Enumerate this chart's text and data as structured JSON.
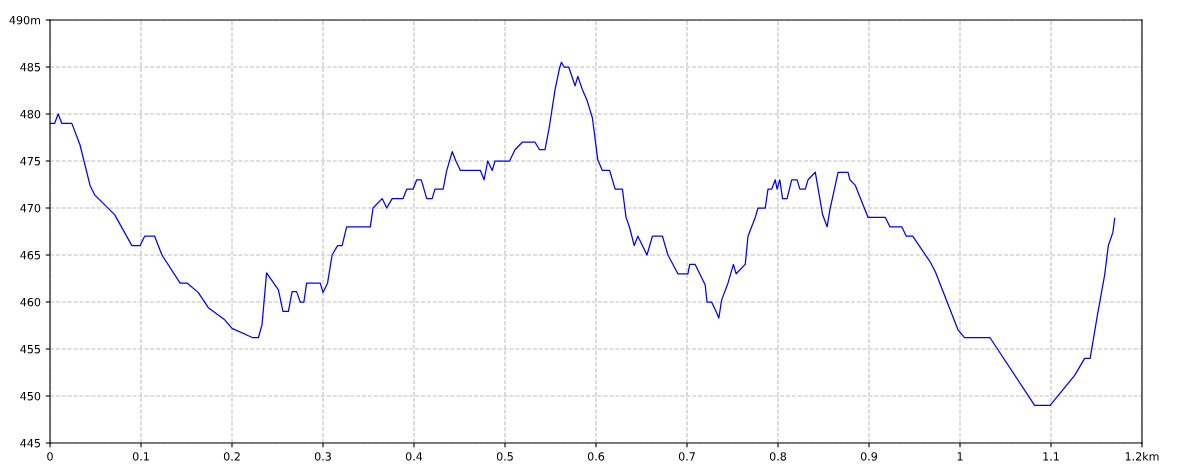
{
  "chart_data": {
    "type": "line",
    "xlim": [
      0,
      1.2
    ],
    "ylim": [
      445,
      490
    ],
    "xticks": [
      0,
      0.1,
      0.2,
      0.3,
      0.4,
      0.5,
      0.6,
      0.7,
      0.8,
      0.9,
      1,
      1.1,
      {
        "value": 1.2,
        "label": "1.2km"
      }
    ],
    "yticks": [
      445,
      450,
      455,
      460,
      465,
      470,
      475,
      480,
      485,
      {
        "value": 490,
        "label": "490m"
      }
    ],
    "grid": true,
    "line_style": "solid",
    "marker": "none",
    "series": [
      {
        "color": "#0000ff",
        "x": [
          0,
          0.005,
          0.009,
          0.013,
          0.024,
          0.033,
          0.044,
          0.049,
          0.071,
          0.09,
          0.099,
          0.104,
          0.115,
          0.123,
          0.143,
          0.151,
          0.163,
          0.174,
          0.192,
          0.2,
          0.223,
          0.229,
          0.233,
          0.238,
          0.251,
          0.256,
          0.262,
          0.266,
          0.271,
          0.275,
          0.279,
          0.282,
          0.297,
          0.3,
          0.305,
          0.31,
          0.316,
          0.321,
          0.326,
          0.352,
          0.355,
          0.365,
          0.37,
          0.376,
          0.388,
          0.392,
          0.399,
          0.403,
          0.408,
          0.414,
          0.42,
          0.423,
          0.432,
          0.436,
          0.442,
          0.446,
          0.451,
          0.473,
          0.477,
          0.481,
          0.486,
          0.489,
          0.505,
          0.511,
          0.519,
          0.533,
          0.538,
          0.544,
          0.549,
          0.555,
          0.56,
          0.562,
          0.565,
          0.57,
          0.577,
          0.58,
          0.585,
          0.59,
          0.596,
          0.602,
          0.607,
          0.615,
          0.621,
          0.629,
          0.633,
          0.637,
          0.642,
          0.646,
          0.651,
          0.656,
          0.662,
          0.673,
          0.679,
          0.684,
          0.69,
          0.701,
          0.703,
          0.709,
          0.714,
          0.72,
          0.722,
          0.727,
          0.732,
          0.735,
          0.738,
          0.745,
          0.751,
          0.754,
          0.764,
          0.767,
          0.775,
          0.778,
          0.786,
          0.789,
          0.793,
          0.797,
          0.799,
          0.802,
          0.805,
          0.81,
          0.815,
          0.821,
          0.824,
          0.83,
          0.833,
          0.841,
          0.846,
          0.849,
          0.854,
          0.857,
          0.862,
          0.866,
          0.877,
          0.879,
          0.885,
          0.899,
          0.918,
          0.923,
          0.936,
          0.941,
          0.948,
          0.967,
          0.973,
          0.998,
          1.005,
          1.033,
          1.082,
          1.099,
          1.126,
          1.137,
          1.143,
          1.151,
          1.159,
          1.163,
          1.168,
          1.17
        ],
        "values": [
          479,
          479,
          480,
          479,
          479,
          476.7,
          472.4,
          471.4,
          469.3,
          466,
          466,
          467,
          467,
          465,
          462,
          462,
          461,
          459.4,
          458.1,
          457.2,
          456.2,
          456.2,
          457.6,
          463.1,
          461.3,
          459,
          459,
          461.1,
          461.1,
          460,
          460,
          462,
          462,
          461,
          462,
          465,
          466,
          466,
          468,
          468,
          470,
          471,
          470,
          471,
          471,
          472,
          472,
          473,
          473,
          471,
          471,
          472,
          472,
          474,
          476,
          475,
          474,
          474,
          473,
          475,
          474,
          475,
          475,
          476.2,
          477,
          477,
          476.2,
          476.2,
          478.8,
          482.6,
          484.9,
          485.5,
          485,
          485,
          483,
          484,
          482.6,
          481.5,
          479.6,
          475.1,
          474,
          474,
          472,
          472,
          469,
          467.9,
          466,
          467,
          466,
          465,
          467,
          467,
          465,
          464.1,
          463,
          463,
          464,
          464,
          463,
          461.8,
          460,
          460,
          459,
          458.3,
          460.2,
          462,
          464,
          463,
          464,
          467,
          469,
          470,
          470,
          472,
          472,
          473,
          472,
          473,
          471,
          471,
          473,
          473,
          472,
          472,
          473,
          473.8,
          471,
          469.3,
          468,
          469.8,
          472,
          473.8,
          473.8,
          473,
          472.4,
          469,
          469,
          468,
          468,
          467,
          467,
          464.3,
          463.2,
          457,
          456.2,
          456.2,
          449,
          449,
          452.2,
          454,
          454,
          458.6,
          462.9,
          466,
          467.4,
          468.9
        ]
      }
    ]
  }
}
